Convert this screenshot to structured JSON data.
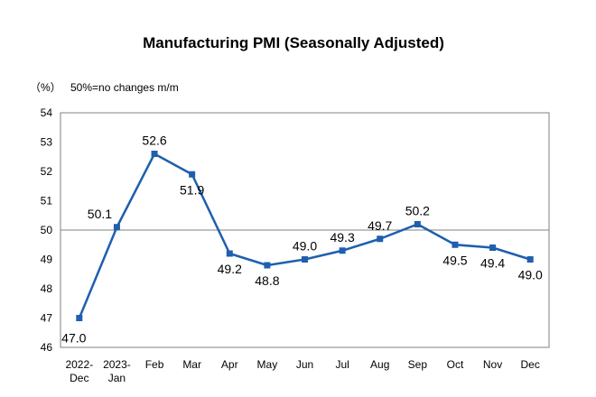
{
  "chart_data": {
    "type": "line",
    "title": "Manufacturing PMI (Seasonally Adjusted)",
    "unit_label": "（%）",
    "note": "50%=no changes m/m",
    "categories": [
      [
        "2022-",
        "Dec"
      ],
      [
        "2023-",
        "Jan"
      ],
      [
        "Feb"
      ],
      [
        "Mar"
      ],
      [
        "Apr"
      ],
      [
        "May"
      ],
      [
        "Jun"
      ],
      [
        "Jul"
      ],
      [
        "Aug"
      ],
      [
        "Sep"
      ],
      [
        "Oct"
      ],
      [
        "Nov"
      ],
      [
        "Dec"
      ]
    ],
    "values": [
      47.0,
      50.1,
      52.6,
      51.9,
      49.2,
      48.8,
      49.0,
      49.3,
      49.7,
      50.2,
      49.5,
      49.4,
      49.0
    ],
    "data_labels": [
      "47.0",
      "50.1",
      "52.6",
      "51.9",
      "49.2",
      "48.8",
      "49.0",
      "49.3",
      "49.7",
      "50.2",
      "49.5",
      "49.4",
      "49.0"
    ],
    "ylim": [
      46,
      54
    ],
    "yticks": [
      46,
      47,
      48,
      49,
      50,
      51,
      52,
      53,
      54
    ],
    "reference_line": 50,
    "line_color": "#1f5fae",
    "grid": false
  }
}
